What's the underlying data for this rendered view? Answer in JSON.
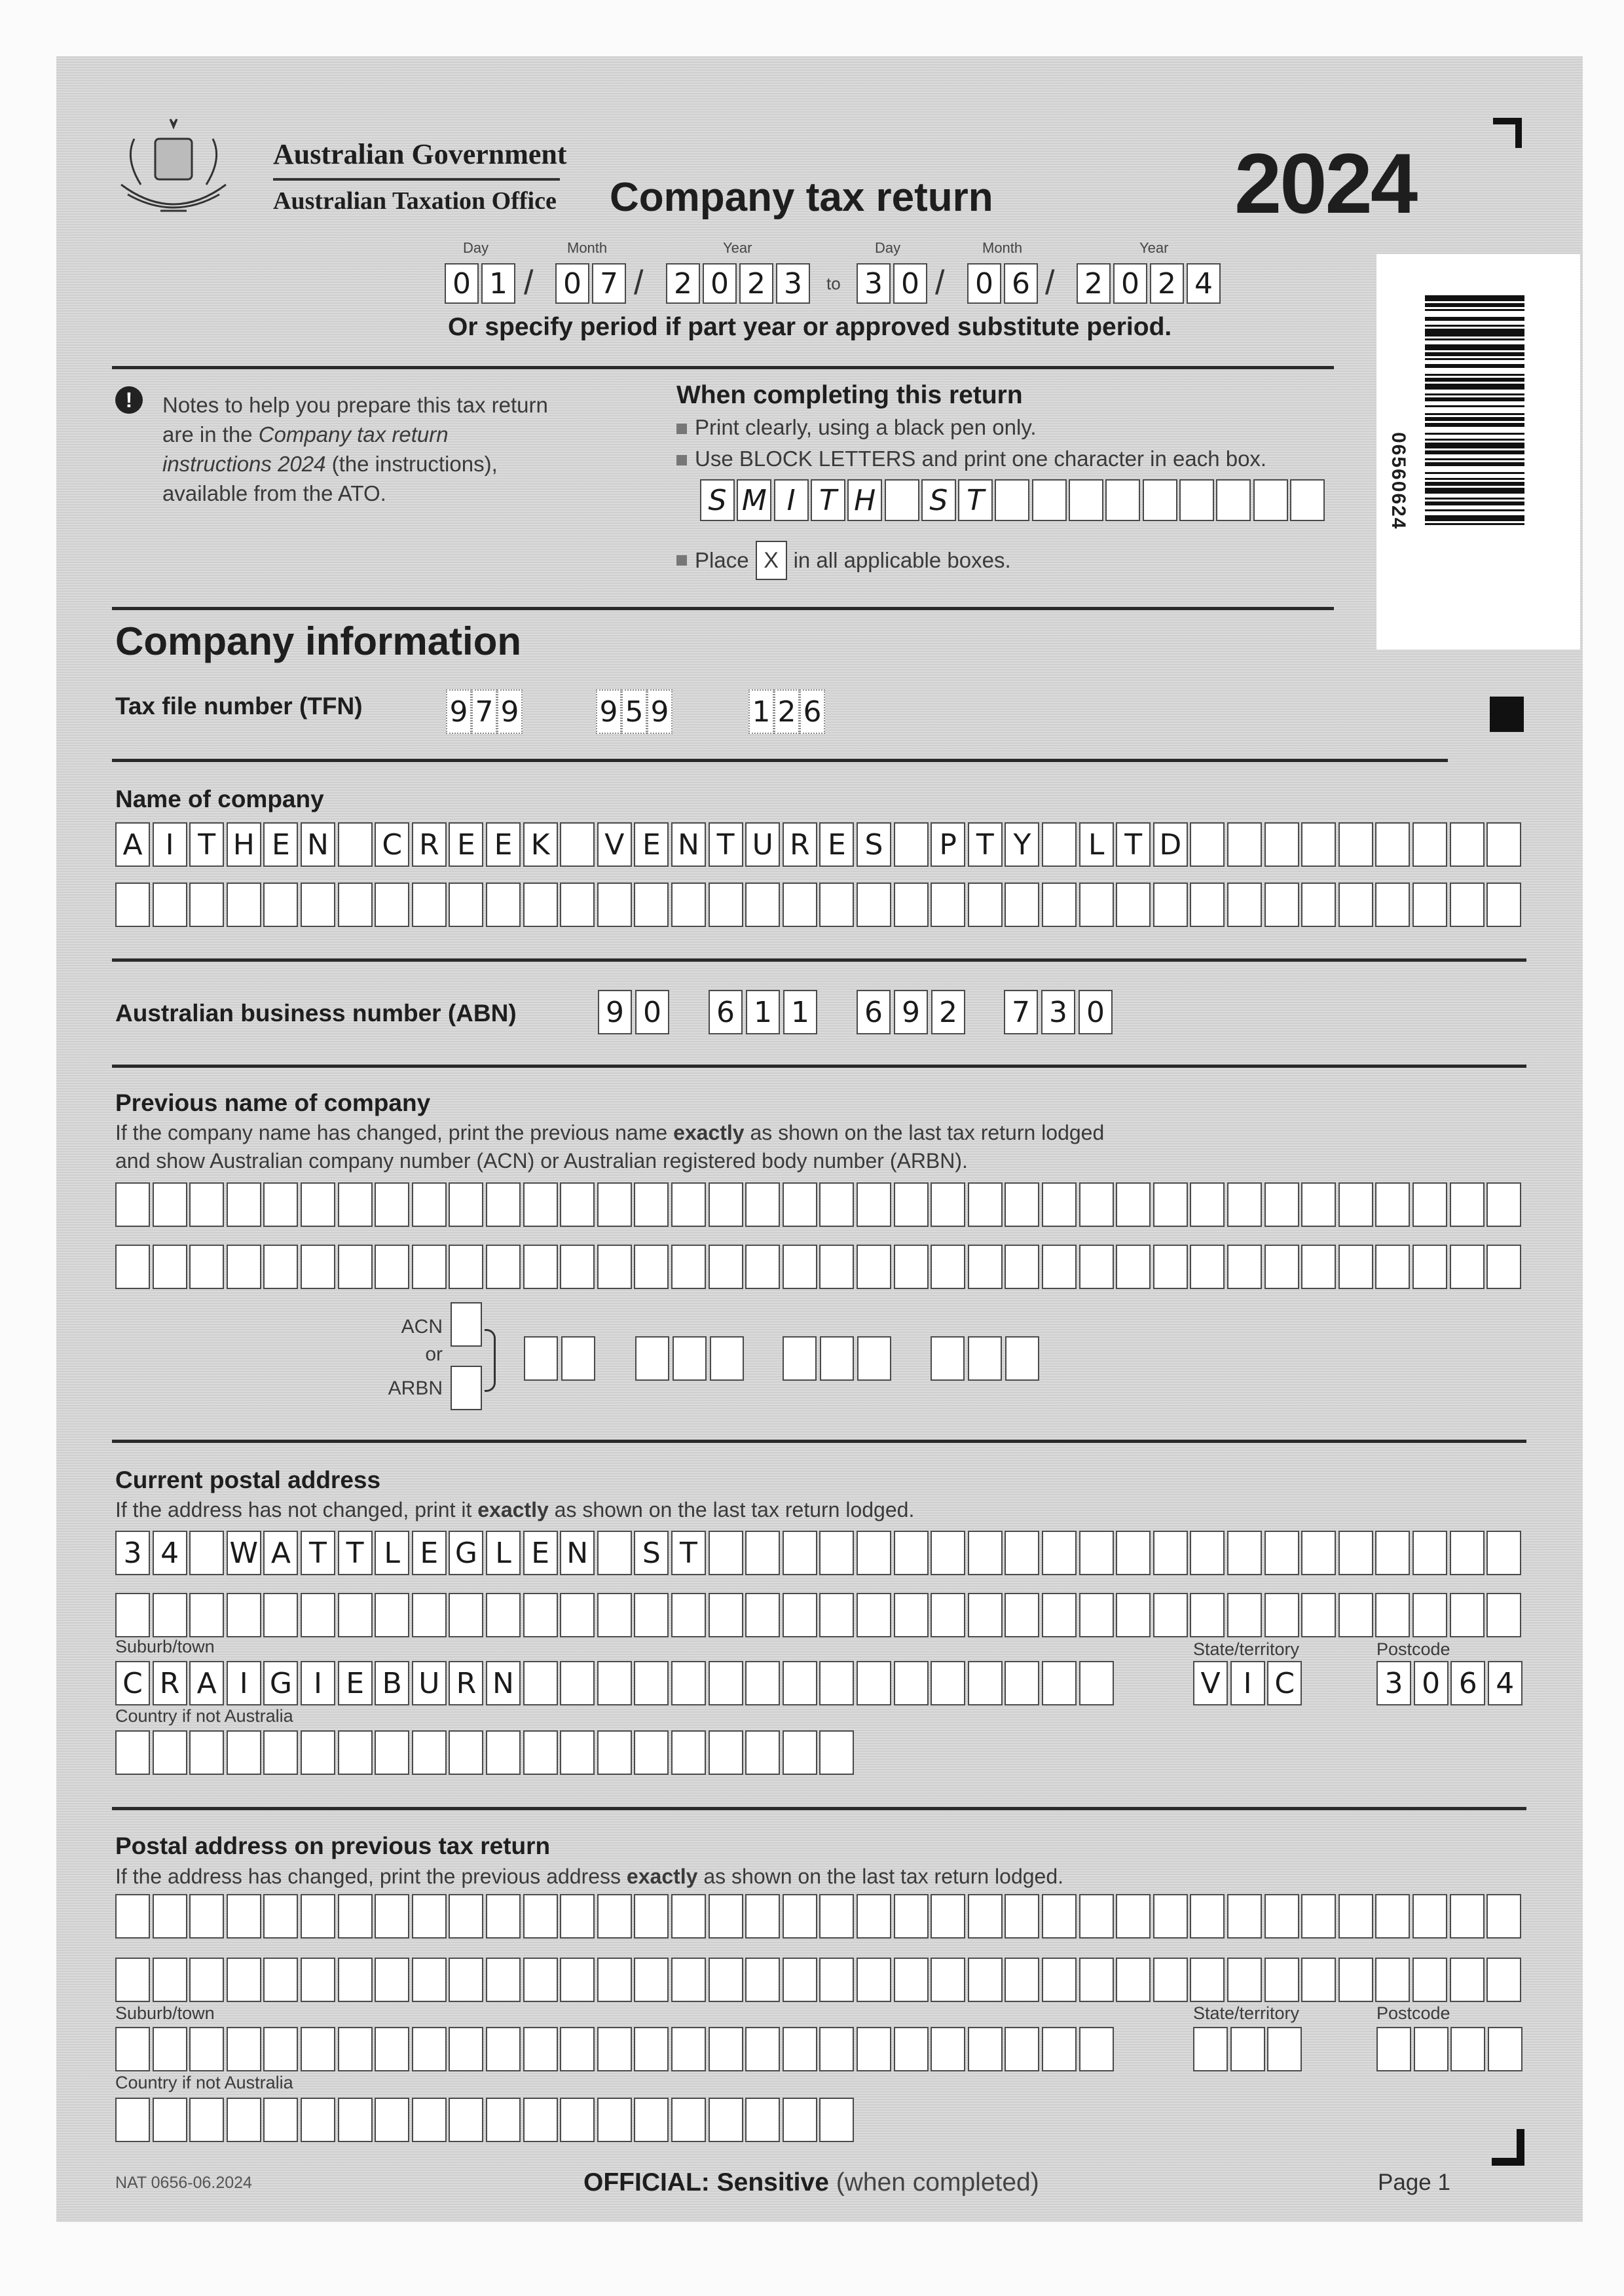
{
  "header": {
    "gov": "Australian Government",
    "office": "Australian Taxation Office",
    "title": "Company tax return",
    "year": "2024"
  },
  "period": {
    "day_label": "Day",
    "month_label": "Month",
    "year_label": "Year",
    "start": {
      "day": "01",
      "month": "07",
      "year": "2023"
    },
    "to": "to",
    "end": {
      "day": "30",
      "month": "06",
      "year": "2024"
    },
    "separator": "/",
    "note": "Or specify period if part year or approved substitute period."
  },
  "notes": {
    "text_before": "Notes to help you prepare this tax return are in the ",
    "text_italic": "Company tax return instructions 2024",
    "text_after": " (the instructions), available from the ATO.",
    "icon": "exclamation-circle-icon"
  },
  "completing": {
    "title": "When completing this return",
    "bullet1": "Print clearly, using a black pen only.",
    "bullet2": "Use BLOCK LETTERS and print one character in each box.",
    "sample": "SMITH ST",
    "bullet3_before": "Place",
    "sample_mark": "X",
    "bullet3_after": "in all applicable boxes."
  },
  "barcode": {
    "number": "06560624"
  },
  "company_info": {
    "title": "Company information",
    "tfn_label": "Tax file number (TFN)",
    "tfn": [
      "979",
      "959",
      "126"
    ],
    "name_label": "Name of company",
    "name": [
      "AITHEN CREEK VENTURES PTY LTD",
      ""
    ],
    "abn_label": "Australian business number (ABN)",
    "abn": [
      "90",
      "611",
      "692",
      "730"
    ]
  },
  "previous_name": {
    "title": "Previous name of company",
    "desc_line1_before": "If the company name has changed, print the previous name ",
    "desc_bold": "exactly",
    "desc_line1_after": " as shown on the last tax return lodged",
    "desc_line2": "and show Australian company number (ACN) or Australian registered body number (ARBN).",
    "lines": [
      "",
      ""
    ],
    "acn_label": "ACN",
    "or_label": "or",
    "arbn_label": "ARBN",
    "number": [
      "",
      "",
      "",
      ""
    ]
  },
  "current_address": {
    "title": "Current postal address",
    "desc_before": "If the address has not changed, print it ",
    "desc_bold": "exactly",
    "desc_after": " as shown on the last tax return lodged.",
    "lines": [
      "34 WATTLEGLEN ST",
      ""
    ],
    "suburb_label": "Suburb/town",
    "suburb": "CRAIGIEBURN",
    "state_label": "State/territory",
    "state": "VIC",
    "postcode_label": "Postcode",
    "postcode": "3064",
    "country_label": "Country if not Australia",
    "country": ""
  },
  "previous_address": {
    "title": "Postal address on previous tax return",
    "desc_before": "If the address has changed, print the previous address ",
    "desc_bold": "exactly",
    "desc_after": " as shown on the last tax return lodged.",
    "lines": [
      "",
      ""
    ],
    "suburb_label": "Suburb/town",
    "suburb": "",
    "state_label": "State/territory",
    "state": "",
    "postcode_label": "Postcode",
    "postcode": "",
    "country_label": "Country if not Australia",
    "country": ""
  },
  "footer": {
    "form_code": "NAT 0656-06.2024",
    "classification_bold": "OFFICIAL: Sensitive",
    "classification_rest": " (when completed)",
    "page": "Page 1"
  }
}
